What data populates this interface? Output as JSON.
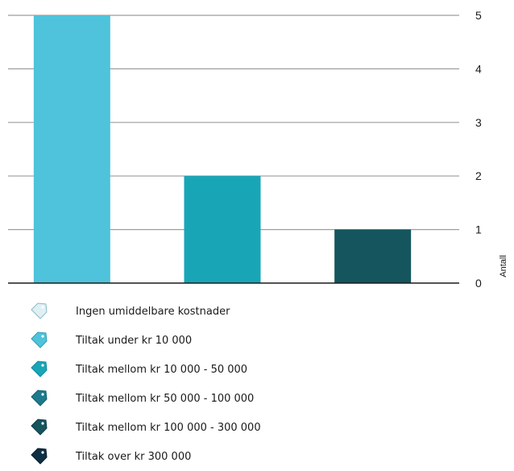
{
  "chart_data": {
    "type": "bar",
    "categories": [
      "",
      "",
      ""
    ],
    "values": [
      5,
      2,
      1
    ],
    "bar_colors": [
      "#4fc3db",
      "#18a6b7",
      "#14555e"
    ],
    "ylabel": "Antall",
    "ylim": [
      0,
      5
    ],
    "yticks": [
      "0",
      "1",
      "2",
      "3",
      "4",
      "5"
    ],
    "grid": true,
    "y_axis_side": "right",
    "legend_position": "bottom-left"
  },
  "legend": {
    "items": [
      {
        "label": "Ingen umiddelbare kostnader",
        "color": "#dff0f5",
        "icon": "tag-icon"
      },
      {
        "label": "Tiltak under kr 10 000",
        "color": "#4fc3db",
        "icon": "tag-icon"
      },
      {
        "label": "Tiltak mellom kr 10 000 - 50 000",
        "color": "#18a6b7",
        "icon": "tag-icon"
      },
      {
        "label": "Tiltak mellom kr 50 000 - 100 000",
        "color": "#1d7a8c",
        "icon": "tag-icon"
      },
      {
        "label": "Tiltak mellom kr 100 000 - 300 000",
        "color": "#14555e",
        "icon": "tag-icon"
      },
      {
        "label": "Tiltak over kr 300 000",
        "color": "#0f2f45",
        "icon": "tag-icon"
      }
    ]
  }
}
